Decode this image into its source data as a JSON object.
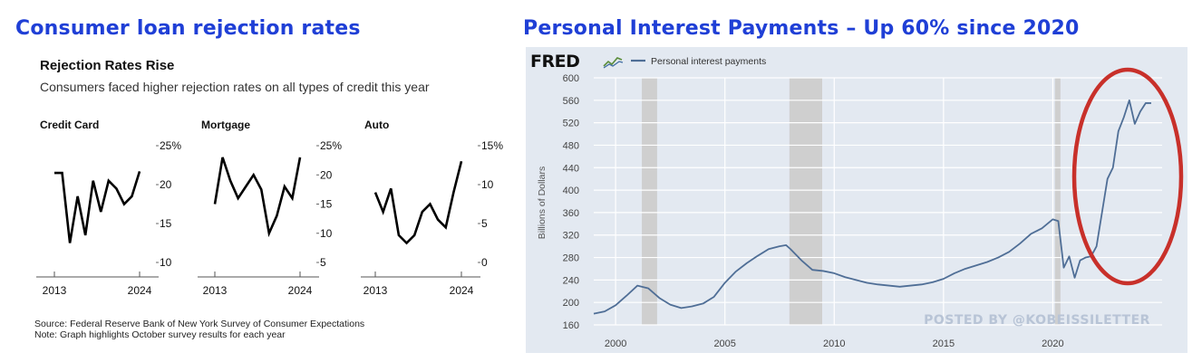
{
  "left": {
    "header": "Consumer loan rejection rates",
    "title": "Rejection Rates Rise",
    "subtitle": "Consumers faced higher rejection rates on all types of credit this year",
    "source": "Source: Federal Reserve Bank of New York Survey of Consumer Expectations",
    "note": "Note: Graph highlights October survey results for each year"
  },
  "right": {
    "header": "Personal Interest Payments – Up 60% since 2020",
    "logo": "FRED",
    "watermark": "POSTED BY @KOBEISSILETTER"
  },
  "chart_data": [
    {
      "type": "line",
      "title": "Credit Card",
      "x": [
        2013,
        2014,
        2015,
        2016,
        2017,
        2018,
        2019,
        2020,
        2021,
        2022,
        2023,
        2024
      ],
      "series": [
        {
          "values": [
            21.5,
            21.5,
            12.5,
            18.5,
            13.5,
            20.5,
            16.5,
            20.5,
            19.5,
            17.5,
            18.5,
            21.7
          ]
        }
      ],
      "ylim": [
        10,
        25
      ],
      "yticks": [
        "25%",
        "20",
        "15",
        "10"
      ],
      "xticks": [
        "2013",
        "2024"
      ],
      "ytick_values": [
        25,
        20,
        15,
        10
      ],
      "color": "#000000"
    },
    {
      "type": "line",
      "title": "Mortgage",
      "x": [
        2013,
        2014,
        2015,
        2016,
        2017,
        2018,
        2019,
        2020,
        2021,
        2022,
        2023,
        2024
      ],
      "series": [
        {
          "values": [
            15,
            23,
            19,
            16,
            18,
            20,
            17.5,
            10,
            13,
            18,
            16,
            23
          ]
        }
      ],
      "ylim": [
        5,
        25
      ],
      "yticks": [
        "25%",
        "20",
        "15",
        "10",
        "5"
      ],
      "xticks": [
        "2013",
        "2024"
      ],
      "ytick_values": [
        25,
        20,
        15,
        10,
        5
      ],
      "color": "#000000"
    },
    {
      "type": "line",
      "title": "Auto",
      "x": [
        2013,
        2014,
        2015,
        2016,
        2017,
        2018,
        2019,
        2020,
        2021,
        2022,
        2023,
        2024
      ],
      "series": [
        {
          "values": [
            9,
            6.5,
            9.5,
            3.5,
            2.5,
            3.5,
            6.5,
            7.5,
            5.5,
            4.5,
            9,
            13
          ]
        }
      ],
      "ylim": [
        0,
        15
      ],
      "yticks": [
        "15%",
        "10",
        "5",
        "0"
      ],
      "xticks": [
        "2013",
        "2024"
      ],
      "ytick_values": [
        15,
        10,
        5,
        0
      ],
      "color": "#000000"
    },
    {
      "type": "line",
      "series": [
        {
          "name": "Personal interest payments",
          "x": [
            1999.0,
            1999.5,
            2000.0,
            2000.5,
            2001.0,
            2001.5,
            2002.0,
            2002.5,
            2003.0,
            2003.5,
            2004.0,
            2004.5,
            2005.0,
            2005.5,
            2006.0,
            2006.5,
            2007.0,
            2007.5,
            2007.8,
            2008.0,
            2008.5,
            2009.0,
            2009.5,
            2010.0,
            2010.5,
            2011.0,
            2011.5,
            2012.0,
            2012.5,
            2013.0,
            2013.5,
            2014.0,
            2014.5,
            2015.0,
            2015.5,
            2016.0,
            2016.5,
            2017.0,
            2017.5,
            2018.0,
            2018.5,
            2019.0,
            2019.5,
            2020.0,
            2020.25,
            2020.5,
            2020.75,
            2021.0,
            2021.25,
            2021.5,
            2021.75,
            2022.0,
            2022.25,
            2022.5,
            2022.75,
            2023.0,
            2023.25,
            2023.5,
            2023.75,
            2024.0,
            2024.25,
            2024.5
          ],
          "values": [
            180,
            184,
            195,
            212,
            230,
            225,
            208,
            196,
            190,
            193,
            198,
            210,
            235,
            255,
            270,
            283,
            295,
            300,
            302,
            295,
            275,
            258,
            256,
            252,
            245,
            240,
            235,
            232,
            230,
            228,
            230,
            232,
            236,
            242,
            252,
            260,
            266,
            272,
            280,
            290,
            305,
            322,
            332,
            348,
            345,
            262,
            282,
            244,
            275,
            280,
            282,
            300,
            360,
            420,
            440,
            505,
            530,
            560,
            518,
            540,
            555,
            555
          ]
        }
      ],
      "ylabel": "Billions of Dollars",
      "ylim": [
        160,
        600
      ],
      "xlim": [
        1999,
        2025
      ],
      "yticks": [
        160,
        200,
        240,
        280,
        320,
        360,
        400,
        440,
        480,
        520,
        560,
        600
      ],
      "xticks": [
        2000,
        2005,
        2010,
        2015,
        2020
      ],
      "recessions": [
        [
          2001.2,
          2001.9
        ],
        [
          2007.95,
          2009.45
        ],
        [
          2020.1,
          2020.35
        ]
      ],
      "highlight": "circle around 2021-2024 rise",
      "colors": {
        "line": "#4f6e96",
        "recession": "#cfcfcf",
        "grid": "#ffffff",
        "circle": "#c8302a",
        "watermark": "#b8c4d6"
      },
      "legend": "top-left",
      "grid": true
    }
  ]
}
